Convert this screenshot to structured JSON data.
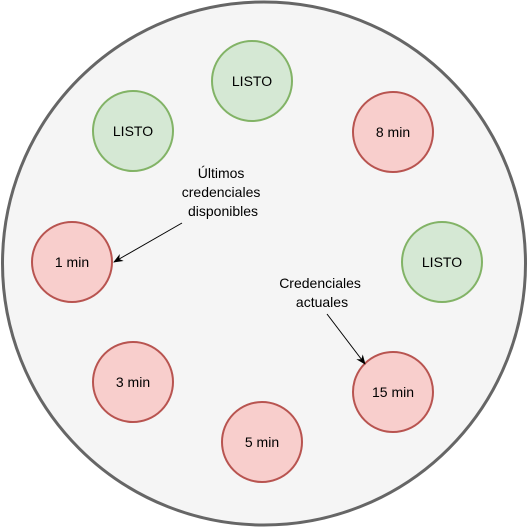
{
  "colors": {
    "container_fill": "#f5f5f5",
    "container_stroke": "#666666",
    "ready_fill": "#d5e8d4",
    "ready_stroke": "#82b366",
    "waiting_fill": "#f8cecc",
    "waiting_stroke": "#b85450",
    "arrow": "#000000"
  },
  "nodes": [
    {
      "id": "node-top",
      "label": "LISTO",
      "state": "ready"
    },
    {
      "id": "node-upper-right",
      "label": "8 min",
      "state": "waiting"
    },
    {
      "id": "node-right",
      "label": "LISTO",
      "state": "ready"
    },
    {
      "id": "node-lower-right",
      "label": "15 min",
      "state": "waiting"
    },
    {
      "id": "node-bottom",
      "label": "5 min",
      "state": "waiting"
    },
    {
      "id": "node-lower-left",
      "label": "3 min",
      "state": "waiting"
    },
    {
      "id": "node-left",
      "label": "1 min",
      "state": "waiting"
    },
    {
      "id": "node-upper-left",
      "label": "LISTO",
      "state": "ready"
    }
  ],
  "annotations": {
    "last_available": [
      "Últimos",
      "credenciales",
      "disponibles"
    ],
    "current": [
      "Credenciales",
      "actuales"
    ]
  }
}
